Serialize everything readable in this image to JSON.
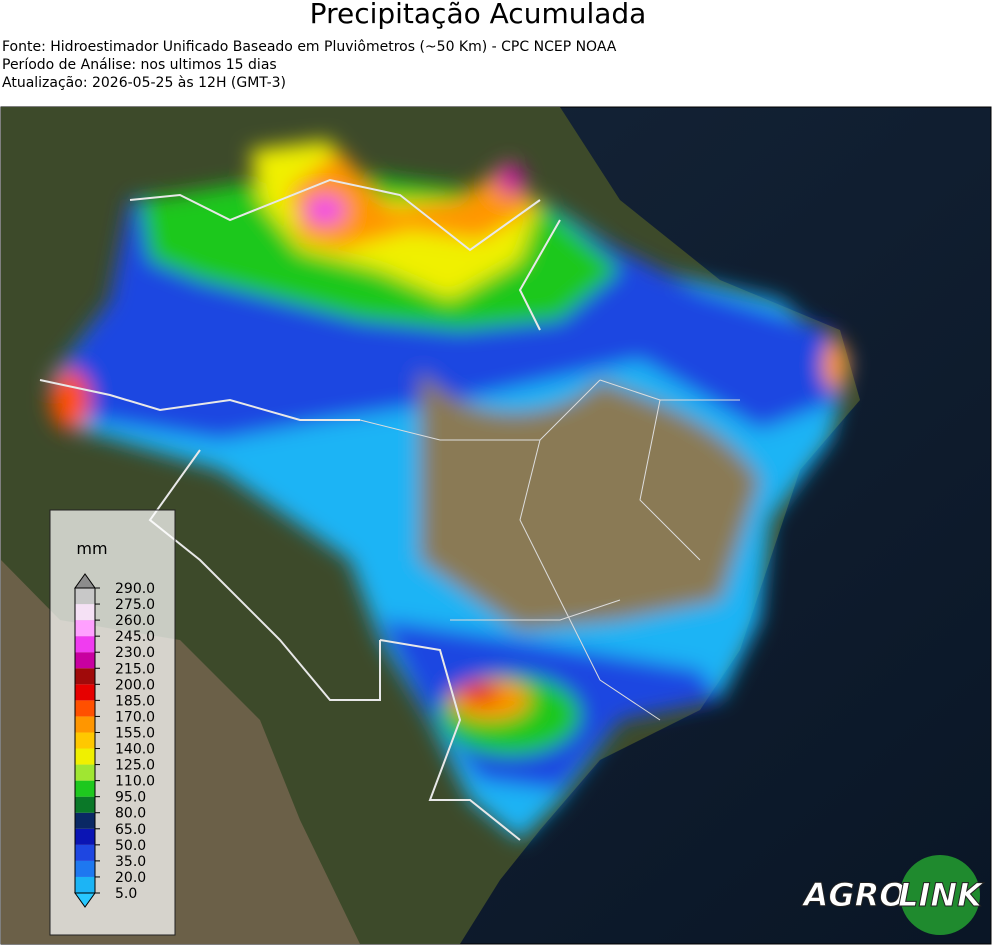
{
  "header": {
    "title": "Precipitação Acumulada",
    "lines": [
      "Fonte: Hidroestimador Unificado Baseado em Pluviômetros (~50 Km) - CPC NCEP NOAA",
      "Período de Análise: nos ultimos 15 dias",
      "Atualização: 2026-05-25 às 12H (GMT-3)"
    ]
  },
  "map": {
    "colorbar": {
      "unit": "mm",
      "lim": [
        5,
        290
      ],
      "ticks": [
        {
          "value": 5,
          "label": "5.0"
        },
        {
          "value": 20,
          "label": "20.0"
        },
        {
          "value": 35,
          "label": "35.0"
        },
        {
          "value": 50,
          "label": "50.0"
        },
        {
          "value": 65,
          "label": "65.0"
        },
        {
          "value": 80,
          "label": "80.0"
        },
        {
          "value": 95,
          "label": "95.0"
        },
        {
          "value": 110,
          "label": "110.0"
        },
        {
          "value": 125,
          "label": "125.0"
        },
        {
          "value": 140,
          "label": "140.0"
        },
        {
          "value": 155,
          "label": "155.0"
        },
        {
          "value": 170,
          "label": "170.0"
        },
        {
          "value": 185,
          "label": "185.0"
        },
        {
          "value": 200,
          "label": "200.0"
        },
        {
          "value": 215,
          "label": "215.0"
        },
        {
          "value": 230,
          "label": "230.0"
        },
        {
          "value": 245,
          "label": "245.0"
        },
        {
          "value": 260,
          "label": "260.0"
        },
        {
          "value": 275,
          "label": "275.0"
        },
        {
          "value": 290,
          "label": "290.0"
        }
      ],
      "colors": [
        "#1cb4f5",
        "#1e78f0",
        "#1e46e1",
        "#0a14b4",
        "#0a2864",
        "#0a7828",
        "#1ec81e",
        "#a0e632",
        "#f0f000",
        "#ffc800",
        "#ff9600",
        "#ff5000",
        "#e60000",
        "#a00a0a",
        "#c800a0",
        "#f03cf0",
        "#ffa0ff",
        "#f5e1f5",
        "#c8c8c8"
      ],
      "under_color": "#28c8ff",
      "over_color": "#8c8c8c"
    }
  },
  "logo": {
    "parts": [
      "AGRO",
      "LINK"
    ]
  }
}
